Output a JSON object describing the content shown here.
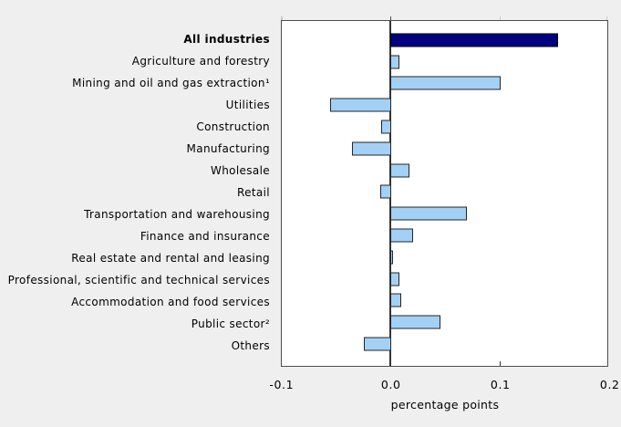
{
  "chart_data": {
    "type": "bar",
    "orientation": "horizontal",
    "categories": [
      "All industries",
      "Agriculture and forestry",
      "Mining and oil and gas extraction¹",
      "Utilities",
      "Construction",
      "Manufacturing",
      "Wholesale",
      "Retail",
      "Transportation and warehousing",
      "Finance and insurance",
      "Real estate and rental and leasing",
      "Professional, scientific and technical services",
      "Accommodation and food services",
      "Public sector²",
      "Others"
    ],
    "values": [
      0.154,
      0.009,
      0.101,
      -0.056,
      -0.009,
      -0.036,
      0.018,
      -0.01,
      0.07,
      0.021,
      0.003,
      0.009,
      0.01,
      0.046,
      -0.025
    ],
    "highlight_index": 0,
    "xlabel": "percentage points",
    "x_ticks": [
      {
        "label": "-0.1",
        "value": -0.1
      },
      {
        "label": "0.0",
        "value": 0.0
      },
      {
        "label": "0.1",
        "value": 0.1
      },
      {
        "label": "0.2",
        "value": 0.2
      }
    ],
    "xlim": [
      -0.1,
      0.2
    ],
    "legend": null,
    "grid": false,
    "colors": {
      "highlight_bar": "#000080",
      "bar_fill": "#A3D0F5",
      "bar_border": "#262626",
      "plot_border": "#4D4D4D",
      "zero_line": "#333333",
      "background": "#EFEFEF",
      "plot_background": "#FFFFFF"
    }
  }
}
